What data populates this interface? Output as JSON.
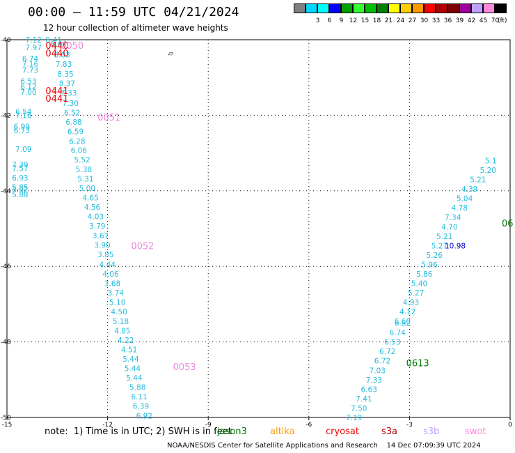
{
  "header": {
    "title": "00:00 – 11:59 UTC 04/21/2024",
    "subtitle": "12 hour collection of altimeter wave heights"
  },
  "legend": {
    "items": [
      {
        "label": "",
        "color": "#808080"
      },
      {
        "label": "3",
        "color": "#00d8ff"
      },
      {
        "label": "6",
        "color": "#00ffff"
      },
      {
        "label": "9",
        "color": "#0000ff"
      },
      {
        "label": "12",
        "color": "#00a000"
      },
      {
        "label": "15",
        "color": "#33ff33"
      },
      {
        "label": "18",
        "color": "#00c000"
      },
      {
        "label": "21",
        "color": "#008000"
      },
      {
        "label": "24",
        "color": "#ffff00"
      },
      {
        "label": "27",
        "color": "#ffd000"
      },
      {
        "label": "30",
        "color": "#ff9900"
      },
      {
        "label": "33",
        "color": "#ff0000"
      },
      {
        "label": "36",
        "color": "#b00000"
      },
      {
        "label": "39",
        "color": "#800000"
      },
      {
        "label": "42",
        "color": "#a000a0"
      },
      {
        "label": "45",
        "color": "#c0a0ff"
      },
      {
        "label": "70",
        "color": "#ff88dd"
      },
      {
        "label": "",
        "color": "#000000"
      }
    ],
    "unit": "(ft)"
  },
  "chart_data": {
    "type": "scatter",
    "xlim": [
      -15,
      0
    ],
    "ylim": [
      -50,
      -40
    ],
    "x_ticks": [
      "-15",
      "-12",
      "-9",
      "-6",
      "-3",
      "0"
    ],
    "y_ticks": [
      "-40",
      "-42",
      "-44",
      "-46",
      "-48",
      "-50"
    ],
    "tracks": [
      {
        "name": "left",
        "color": "#22bbdd",
        "points": [
          {
            "x": -14.45,
            "y": -40.0,
            "v": "7.12"
          },
          {
            "x": -14.45,
            "y": -40.2,
            "v": "7.97"
          },
          {
            "x": -14.55,
            "y": -40.5,
            "v": "6.74"
          },
          {
            "x": -14.55,
            "y": -40.64,
            "v": "7.16"
          },
          {
            "x": -14.55,
            "y": -40.8,
            "v": "7.73"
          },
          {
            "x": -14.6,
            "y": -41.1,
            "v": "6.53"
          },
          {
            "x": -14.6,
            "y": -41.24,
            "v": "6.12"
          },
          {
            "x": -14.6,
            "y": -41.38,
            "v": "7.00"
          },
          {
            "x": -14.75,
            "y": -41.9,
            "v": "6.54"
          },
          {
            "x": -14.75,
            "y": -42.0,
            "v": "7.16"
          },
          {
            "x": -14.8,
            "y": -42.3,
            "v": "6.99"
          },
          {
            "x": -14.8,
            "y": -42.4,
            "v": "6.73"
          },
          {
            "x": -14.75,
            "y": -42.9,
            "v": "7.09"
          },
          {
            "x": -14.85,
            "y": -43.3,
            "v": "7.39"
          },
          {
            "x": -14.85,
            "y": -43.4,
            "v": "7.57"
          },
          {
            "x": -14.85,
            "y": -43.65,
            "v": "6.93"
          },
          {
            "x": -14.85,
            "y": -43.9,
            "v": "5.85"
          },
          {
            "x": -14.85,
            "y": -43.97,
            "v": "6.02"
          },
          {
            "x": -14.85,
            "y": -44.1,
            "v": "5.88"
          }
        ]
      },
      {
        "name": "center",
        "color": "#22bbdd",
        "points": [
          {
            "x": -13.85,
            "y": -40.0,
            "v": "8.41"
          },
          {
            "x": -13.7,
            "y": -40.1,
            "v": "6.44"
          },
          {
            "x": -13.6,
            "y": -40.4,
            "v": "8.03"
          },
          {
            "x": -13.55,
            "y": -40.65,
            "v": "7.83"
          },
          {
            "x": -13.5,
            "y": -40.9,
            "v": "8.35"
          },
          {
            "x": -13.45,
            "y": -41.15,
            "v": "8.37"
          },
          {
            "x": -13.4,
            "y": -41.4,
            "v": "7.33"
          },
          {
            "x": -13.35,
            "y": -41.68,
            "v": "7.30"
          },
          {
            "x": -13.3,
            "y": -41.93,
            "v": "6.52"
          },
          {
            "x": -13.25,
            "y": -42.18,
            "v": "6.88"
          },
          {
            "x": -13.2,
            "y": -42.43,
            "v": "6.59"
          },
          {
            "x": -13.15,
            "y": -42.68,
            "v": "6.28"
          },
          {
            "x": -13.1,
            "y": -42.92,
            "v": "6.06"
          },
          {
            "x": -13.0,
            "y": -43.17,
            "v": "5.52"
          },
          {
            "x": -12.95,
            "y": -43.43,
            "v": "5.38"
          },
          {
            "x": -12.9,
            "y": -43.68,
            "v": "5.31"
          },
          {
            "x": -12.85,
            "y": -43.93,
            "v": "5.00"
          },
          {
            "x": -12.75,
            "y": -44.18,
            "v": "4.65"
          },
          {
            "x": -12.7,
            "y": -44.43,
            "v": "4.56"
          },
          {
            "x": -12.6,
            "y": -44.68,
            "v": "4.03"
          },
          {
            "x": -12.55,
            "y": -44.93,
            "v": "3.79"
          },
          {
            "x": -12.45,
            "y": -45.18,
            "v": "3.67"
          },
          {
            "x": -12.4,
            "y": -45.43,
            "v": "3.90"
          },
          {
            "x": -12.3,
            "y": -45.68,
            "v": "3.85"
          },
          {
            "x": -12.25,
            "y": -45.95,
            "v": "4.44"
          },
          {
            "x": -12.15,
            "y": -46.2,
            "v": "4.06"
          },
          {
            "x": -12.1,
            "y": -46.45,
            "v": "3.68"
          },
          {
            "x": -12.0,
            "y": -46.7,
            "v": "3.74"
          },
          {
            "x": -11.95,
            "y": -46.95,
            "v": "5.10"
          },
          {
            "x": -11.9,
            "y": -47.2,
            "v": "4.50"
          },
          {
            "x": -11.85,
            "y": -47.45,
            "v": "5.18"
          },
          {
            "x": -11.8,
            "y": -47.7,
            "v": "4.85"
          },
          {
            "x": -11.7,
            "y": -47.95,
            "v": "4.22"
          },
          {
            "x": -11.6,
            "y": -48.2,
            "v": "4.51"
          },
          {
            "x": -11.55,
            "y": -48.45,
            "v": "5.44"
          },
          {
            "x": -11.5,
            "y": -48.7,
            "v": "5.44"
          },
          {
            "x": -11.45,
            "y": -48.95,
            "v": "5.44"
          },
          {
            "x": -11.35,
            "y": -49.2,
            "v": "5.88"
          },
          {
            "x": -11.3,
            "y": -49.45,
            "v": "6.11"
          },
          {
            "x": -11.25,
            "y": -49.7,
            "v": "6.39"
          },
          {
            "x": -11.15,
            "y": -49.95,
            "v": "6.92"
          }
        ]
      },
      {
        "name": "right",
        "color": "#22bbdd",
        "points": [
          {
            "x": -4.9,
            "y": -50.0,
            "v": "7.19"
          },
          {
            "x": -4.75,
            "y": -49.75,
            "v": "7.50"
          },
          {
            "x": -4.6,
            "y": -49.5,
            "v": "7.41"
          },
          {
            "x": -4.45,
            "y": -49.25,
            "v": "6.63"
          },
          {
            "x": -4.3,
            "y": -49.0,
            "v": "7.33"
          },
          {
            "x": -4.2,
            "y": -48.75,
            "v": "7.03"
          },
          {
            "x": -4.05,
            "y": -48.5,
            "v": "6.72"
          },
          {
            "x": -3.9,
            "y": -48.25,
            "v": "6.72"
          },
          {
            "x": -3.75,
            "y": -48.0,
            "v": "6.53"
          },
          {
            "x": -3.6,
            "y": -47.75,
            "v": "6.74"
          },
          {
            "x": -3.45,
            "y": -47.5,
            "v": "6.82"
          },
          {
            "x": -3.45,
            "y": -47.45,
            "v": "6.60"
          },
          {
            "x": -3.3,
            "y": -47.2,
            "v": "4.12"
          },
          {
            "x": -3.2,
            "y": -46.95,
            "v": "4.93"
          },
          {
            "x": -3.05,
            "y": -46.7,
            "v": "5.27"
          },
          {
            "x": -2.95,
            "y": -46.45,
            "v": "5.40"
          },
          {
            "x": -2.8,
            "y": -46.2,
            "v": "5.86"
          },
          {
            "x": -2.65,
            "y": -45.95,
            "v": "5.96"
          },
          {
            "x": -2.5,
            "y": -45.7,
            "v": "5.26"
          },
          {
            "x": -2.35,
            "y": -45.45,
            "v": "5.27"
          },
          {
            "x": -2.2,
            "y": -45.2,
            "v": "5.21"
          },
          {
            "x": -2.05,
            "y": -44.95,
            "v": "4.70"
          },
          {
            "x": -1.95,
            "y": -44.7,
            "v": "7.34"
          },
          {
            "x": -1.75,
            "y": -44.45,
            "v": "4.78"
          },
          {
            "x": -1.6,
            "y": -44.2,
            "v": "5.04"
          },
          {
            "x": -1.45,
            "y": -43.95,
            "v": "4.39"
          },
          {
            "x": -1.2,
            "y": -43.7,
            "v": "5.21"
          },
          {
            "x": -0.9,
            "y": -43.45,
            "v": "5.20"
          },
          {
            "x": -0.75,
            "y": -43.2,
            "v": "5.1"
          }
        ]
      },
      {
        "name": "highlight",
        "color": "#0000cc",
        "points": [
          {
            "x": -1.95,
            "y": -45.45,
            "v": "10.98"
          }
        ]
      }
    ],
    "time_labels": [
      {
        "x": -13.85,
        "y": -40.15,
        "label": "0440",
        "color": "#ee0000"
      },
      {
        "x": -13.85,
        "y": -40.35,
        "label": "0440",
        "color": "#ee0000"
      },
      {
        "x": -13.4,
        "y": -40.15,
        "label": "0050",
        "color": "#ee88dd"
      },
      {
        "x": -13.85,
        "y": -41.35,
        "label": "0441",
        "color": "#ee0000"
      },
      {
        "x": -13.85,
        "y": -41.55,
        "label": "0441",
        "color": "#ee0000"
      },
      {
        "x": -12.3,
        "y": -42.05,
        "label": "0051",
        "color": "#ee88dd"
      },
      {
        "x": -11.3,
        "y": -45.45,
        "label": "0052",
        "color": "#ee88dd"
      },
      {
        "x": -10.05,
        "y": -48.65,
        "label": "0053",
        "color": "#ee88dd"
      },
      {
        "x": -3.1,
        "y": -48.55,
        "label": "0613",
        "color": "#007700"
      },
      {
        "x": -0.25,
        "y": -44.85,
        "label": "06",
        "color": "#007700"
      }
    ],
    "markers": [
      {
        "x": -10.2,
        "y": -40.35,
        "glyph": "▱"
      }
    ]
  },
  "footnote": {
    "note": "note:  1) Time is in UTC; 2) SWH is in feet",
    "satellites": [
      {
        "name": "jason3",
        "color": "#007700"
      },
      {
        "name": "altika",
        "color": "#ff9900"
      },
      {
        "name": "cryosat",
        "color": "#ee0000"
      },
      {
        "name": "s3a",
        "color": "#b00000"
      },
      {
        "name": "s3b",
        "color": "#c0a0ff"
      },
      {
        "name": "swot",
        "color": "#ff88dd"
      }
    ],
    "credit": "NOAA/NESDIS Center for Satellite Applications and Research",
    "timestamp": "14 Dec 07:09:39 UTC 2024"
  }
}
